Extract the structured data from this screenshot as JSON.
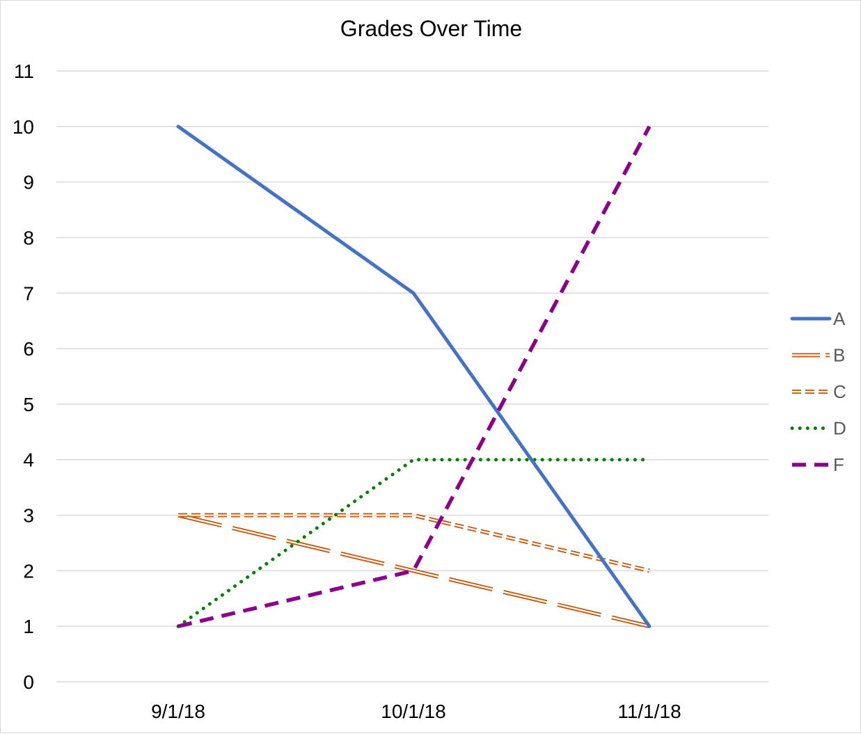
{
  "chart_data": {
    "type": "line",
    "title": "Grades Over Time",
    "xlabel": "",
    "ylabel": "",
    "categories": [
      "9/1/18",
      "10/1/18",
      "11/1/18"
    ],
    "ylim": [
      0,
      11
    ],
    "yticks": [
      0,
      1,
      2,
      3,
      4,
      5,
      6,
      7,
      8,
      9,
      10,
      11
    ],
    "grid": true,
    "legend_position": "right",
    "series": [
      {
        "name": "A",
        "values": [
          10,
          7,
          1
        ],
        "color": "#4472C4",
        "style": "solid"
      },
      {
        "name": "B",
        "values": [
          3,
          2,
          1
        ],
        "color": "#C55A11",
        "style": "long-dash-outline"
      },
      {
        "name": "C",
        "values": [
          3,
          3,
          2
        ],
        "color": "#C55A11",
        "style": "dash-outline"
      },
      {
        "name": "D",
        "values": [
          1,
          4,
          4
        ],
        "color": "#008000",
        "style": "dotted"
      },
      {
        "name": "F",
        "values": [
          1,
          2,
          10
        ],
        "color": "#8B008B",
        "style": "dashed"
      }
    ]
  }
}
